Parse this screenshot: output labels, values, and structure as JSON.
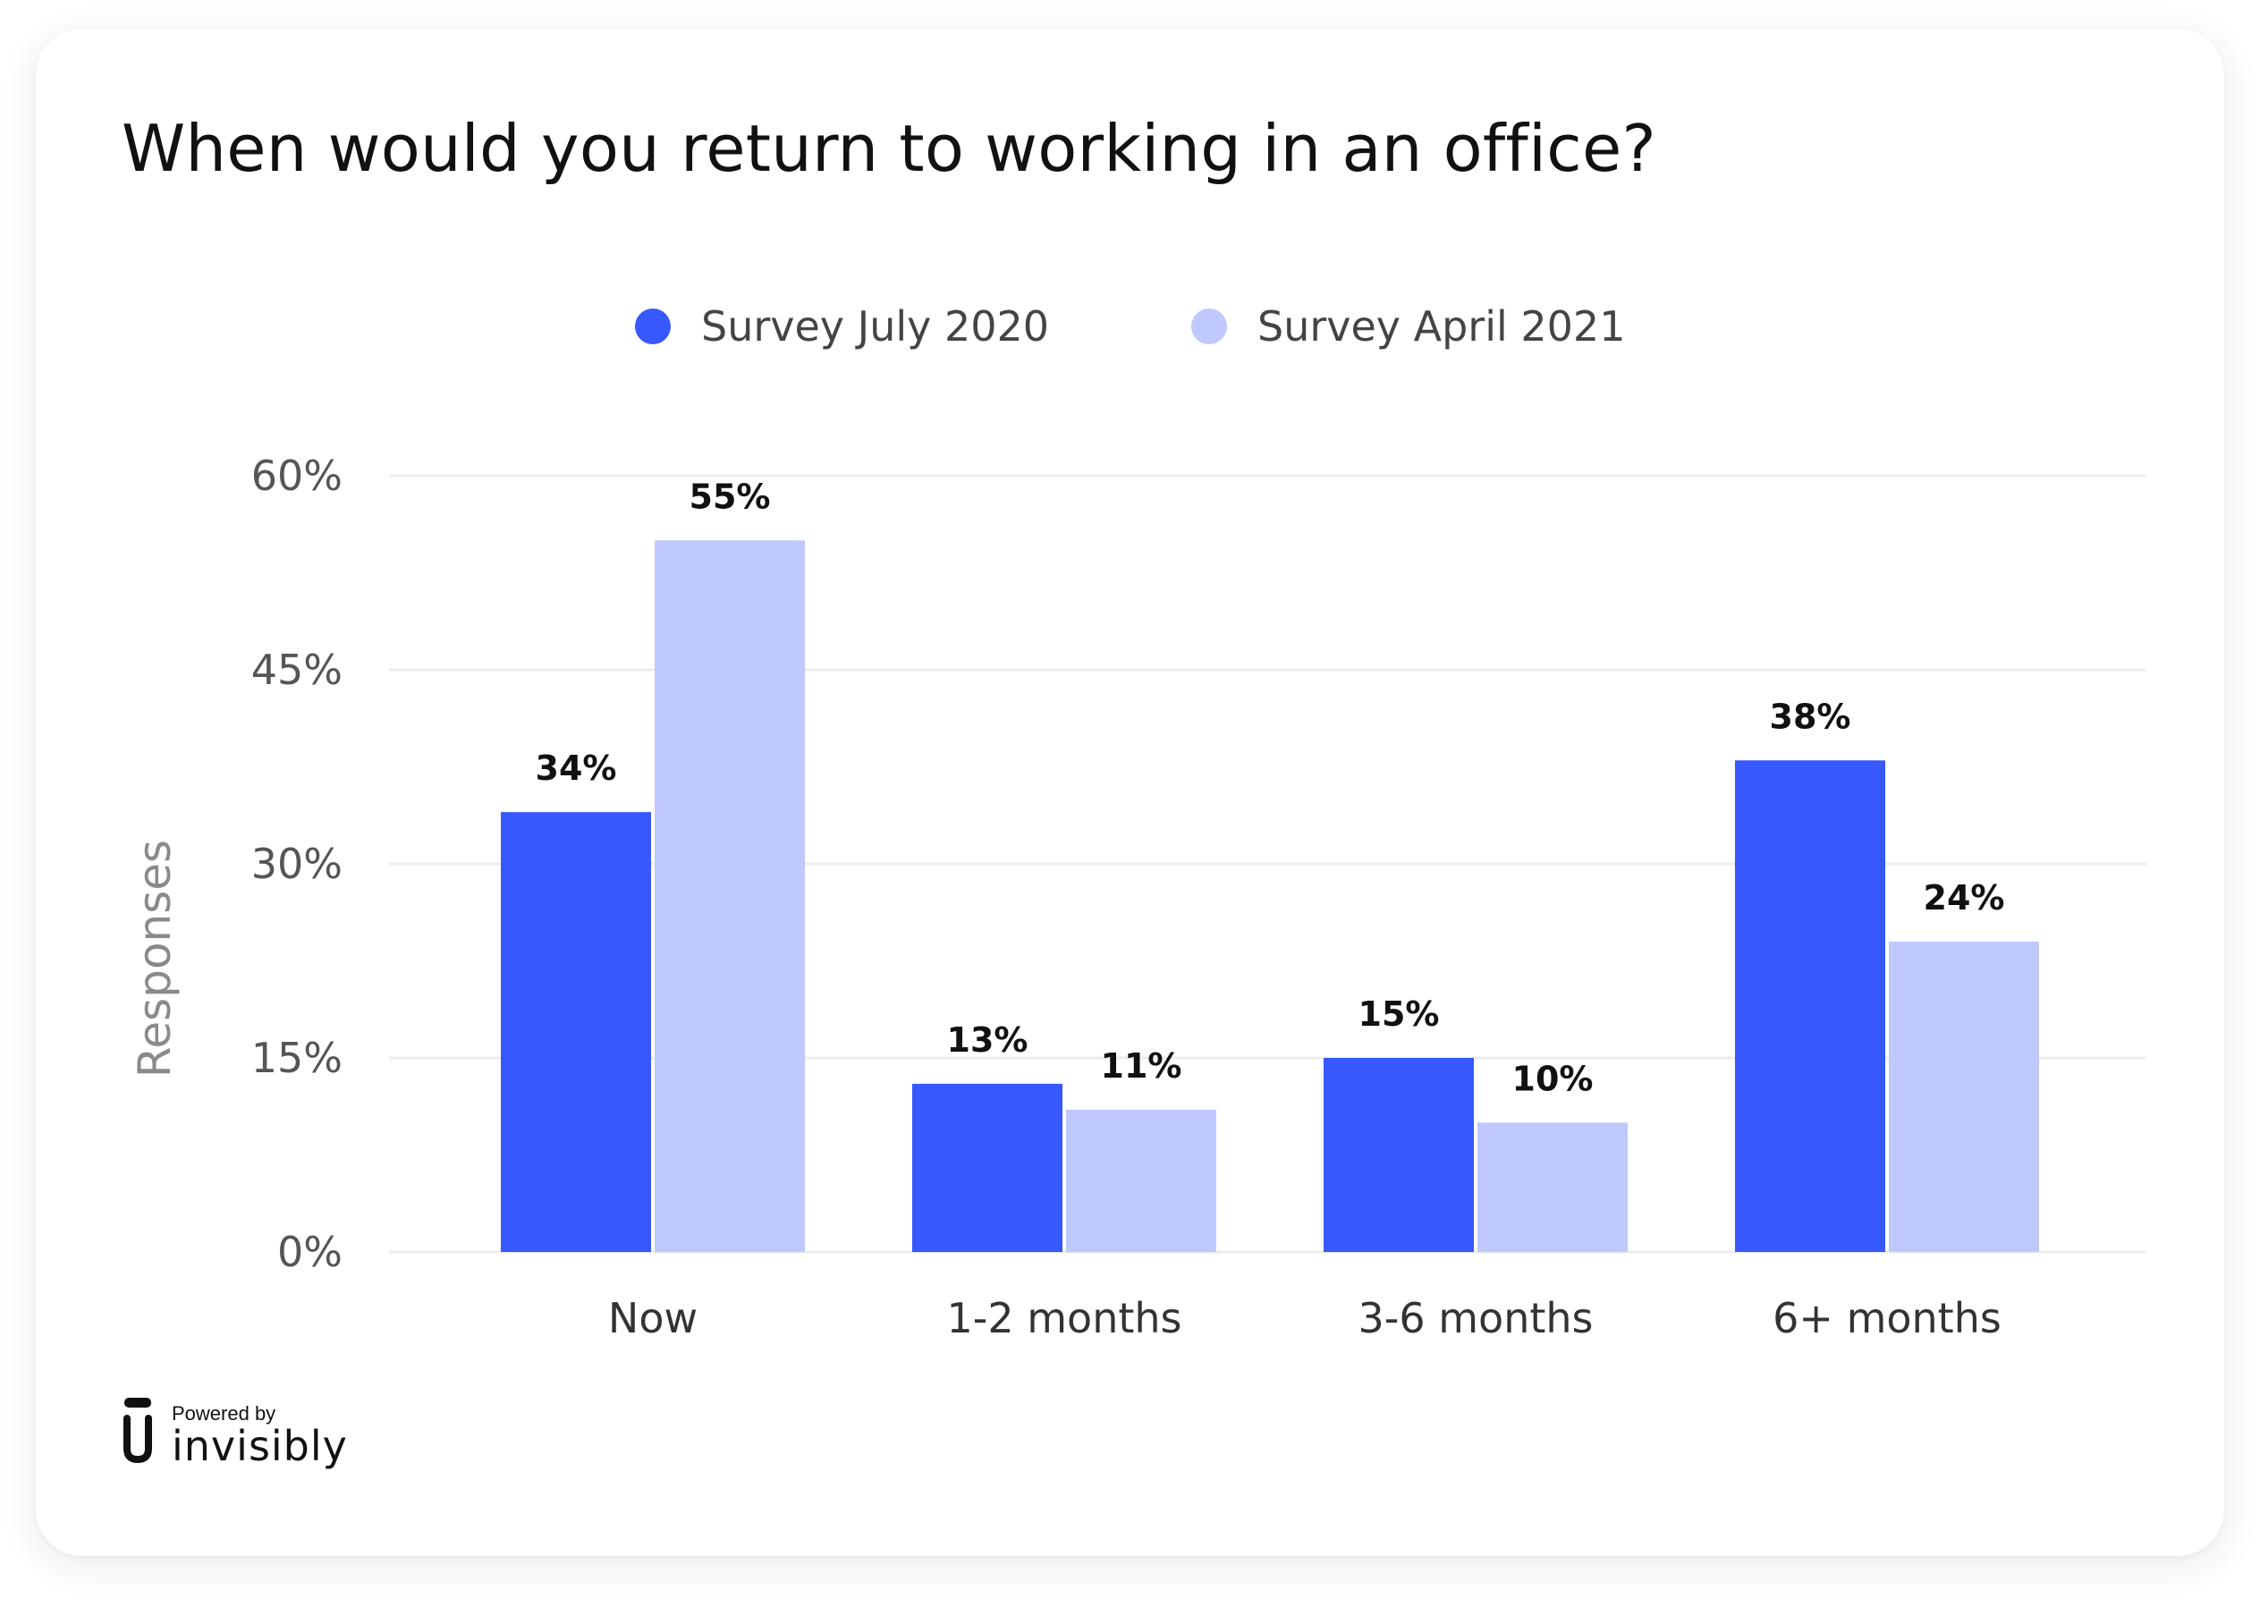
{
  "chart_data": {
    "type": "bar",
    "title": "When would you return to working in an office?",
    "ylabel": "Responses",
    "xlabel": "",
    "categories": [
      "Now",
      "1-2 months",
      "3-6 months",
      "6+ months"
    ],
    "series": [
      {
        "name": "Survey July 2020",
        "values": [
          34,
          13,
          15,
          38
        ],
        "labels": [
          "34%",
          "13%",
          "15%",
          "38%"
        ],
        "color": "#3658fd"
      },
      {
        "name": "Survey April 2021",
        "values": [
          55,
          11,
          10,
          24
        ],
        "labels": [
          "55%",
          "11%",
          "10%",
          "24%"
        ],
        "color": "#bfc9fd"
      }
    ],
    "ylim": [
      0,
      60
    ],
    "yticks": [
      0,
      15,
      30,
      45,
      60
    ],
    "ytick_labels": [
      "0%",
      "15%",
      "30%",
      "45%",
      "60%"
    ],
    "grid": true,
    "legend_position": "top-center"
  },
  "branding": {
    "powered_by": "Powered by",
    "name": "invisibly",
    "logo_icon": "invisibly-logo-icon"
  },
  "colors": {
    "series_1": "#3658fd",
    "series_2": "#bfc9fd",
    "grid": "#ececec",
    "tick_text": "#555555",
    "axis_label": "#8a8a8a",
    "data_label": "#111111"
  }
}
